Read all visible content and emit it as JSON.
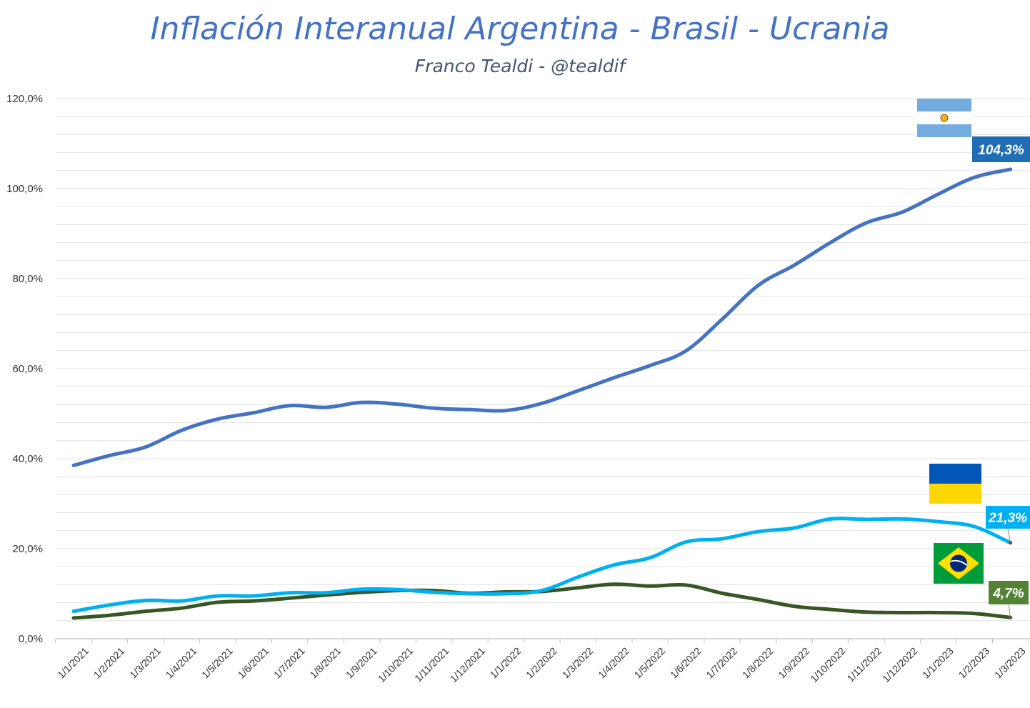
{
  "chart_data": {
    "type": "line",
    "title": "Inflación Interanual Argentina - Brasil - Ucrania",
    "subtitle": "Franco Tealdi - @tealdif",
    "xlabel": "",
    "ylabel": "",
    "ylim": [
      0,
      120
    ],
    "yticks": [
      "0,0%",
      "20,0%",
      "40,0%",
      "60,0%",
      "80,0%",
      "100,0%",
      "120,0%"
    ],
    "grid": true,
    "legend": "none",
    "categories": [
      "1/1/2021",
      "1/2/2021",
      "1/3/2021",
      "1/4/2021",
      "1/5/2021",
      "1/6/2021",
      "1/7/2021",
      "1/8/2021",
      "1/9/2021",
      "1/10/2021",
      "1/11/2021",
      "1/12/2021",
      "1/1/2022",
      "1/2/2022",
      "1/3/2022",
      "1/4/2022",
      "1/5/2022",
      "1/6/2022",
      "1/7/2022",
      "1/8/2022",
      "1/9/2022",
      "1/10/2022",
      "1/11/2022",
      "1/12/2022",
      "1/1/2023",
      "1/2/2023",
      "1/3/2023"
    ],
    "series": [
      {
        "key": "argentina",
        "color": "#4472C4",
        "values": [
          38.5,
          40.7,
          42.6,
          46.3,
          48.8,
          50.2,
          51.8,
          51.4,
          52.5,
          52.1,
          51.2,
          50.9,
          50.7,
          52.3,
          55.1,
          58.0,
          60.7,
          64.0,
          71.0,
          78.5,
          83.0,
          88.0,
          92.4,
          94.8,
          98.8,
          102.5,
          104.3
        ],
        "end_label": "104,3%",
        "label_color": "#1F6DB5",
        "flag": "argentina-flag"
      },
      {
        "key": "ucrania",
        "color": "#00B0F0",
        "values": [
          6.1,
          7.5,
          8.5,
          8.4,
          9.5,
          9.5,
          10.2,
          10.2,
          11.0,
          10.9,
          10.3,
          10.0,
          10.0,
          10.7,
          13.7,
          16.4,
          18.0,
          21.5,
          22.2,
          23.8,
          24.6,
          26.6,
          26.5,
          26.6,
          26.0,
          24.9,
          21.3
        ],
        "end_label": "21,3%",
        "label_color": "#00B0F0",
        "flag": "ukraine-flag"
      },
      {
        "key": "brasil",
        "color": "#375623",
        "values": [
          4.6,
          5.2,
          6.1,
          6.8,
          8.1,
          8.4,
          9.0,
          9.7,
          10.3,
          10.7,
          10.7,
          10.1,
          10.4,
          10.5,
          11.3,
          12.1,
          11.7,
          11.9,
          10.1,
          8.7,
          7.2,
          6.5,
          5.9,
          5.8,
          5.8,
          5.6,
          4.7
        ],
        "end_label": "4,7%",
        "label_color": "#548235",
        "flag": "brazil-flag"
      }
    ]
  }
}
